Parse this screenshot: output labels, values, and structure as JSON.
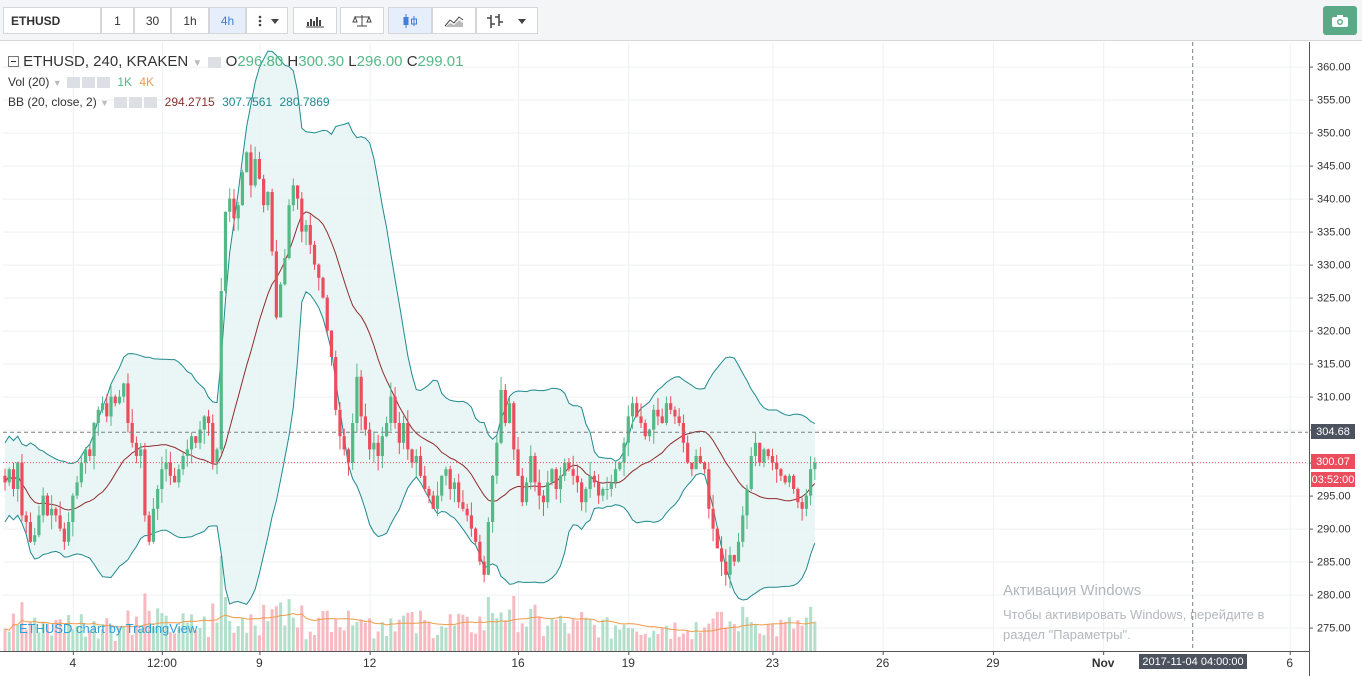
{
  "toolbar": {
    "symbol": "ETHUSD",
    "intervals": [
      "1",
      "30",
      "1h",
      "4h"
    ],
    "active_interval": "4h",
    "colors": {
      "accent": "#3f7fd9",
      "screenshot": "#5aaa87"
    }
  },
  "legend": {
    "title": "ETHUSD, 240, KRAKEN",
    "o_label": "O",
    "o_value": "296.80",
    "h_label": "H",
    "h_value": "300.30",
    "l_label": "L",
    "l_value": "296.00",
    "c_label": "C",
    "c_value": "299.01",
    "vol_label": "Vol (20)",
    "vol_1": "1K",
    "vol_2": "4K",
    "bb_label": "BB (20, close, 2)",
    "bb_basis": "294.2715",
    "bb_upper": "307.7561",
    "bb_lower": "280.7869"
  },
  "price_tags": {
    "upper": "304.68",
    "last": "300.07",
    "countdown": "03:52:00",
    "crosshair_time": "2017-11-04 04:00:00"
  },
  "attribution": "ETHUSD chart by TradingView",
  "watermark": {
    "title": "Активация Windows",
    "line2": "Чтобы активировать Windows, перейдите в",
    "line3": "раздел \"Параметры\"."
  },
  "chart_data": {
    "type": "candlestick",
    "symbol": "ETHUSD",
    "interval": "240",
    "exchange": "KRAKEN",
    "y_axis": {
      "min": 271,
      "max": 363,
      "ticks": [
        275,
        280,
        285,
        290,
        295,
        300,
        305,
        310,
        315,
        320,
        325,
        330,
        335,
        340,
        345,
        350,
        355,
        360
      ]
    },
    "x_axis": {
      "labels": [
        "4",
        "12:00",
        "9",
        "12",
        "16",
        "19",
        "23",
        "26",
        "29",
        "Nov",
        "6"
      ],
      "label_bar_index": [
        16,
        37,
        60,
        86,
        121,
        147,
        181,
        207,
        233,
        259,
        303
      ]
    },
    "closes": [
      297,
      299,
      296,
      300,
      292,
      291,
      288,
      289,
      292,
      295,
      292,
      293,
      292,
      290,
      288,
      291,
      295,
      297,
      300,
      302,
      301,
      306,
      308,
      309,
      307,
      310,
      309,
      310,
      312,
      306,
      303,
      301,
      302,
      292,
      288,
      293,
      296,
      299,
      300,
      298,
      297,
      299,
      301,
      302,
      304,
      303,
      305,
      307,
      306,
      300,
      302,
      326,
      338,
      340,
      337,
      339,
      344,
      347,
      342,
      346,
      343,
      339,
      341,
      332,
      322,
      327,
      331,
      339,
      342,
      340,
      335,
      336,
      333,
      330,
      328,
      325,
      320,
      316,
      308,
      304,
      302,
      300,
      306,
      313,
      307,
      305,
      302,
      303,
      301,
      304,
      306,
      310,
      306,
      303,
      306,
      302,
      300,
      301,
      298,
      296,
      295,
      293,
      295,
      298,
      299,
      296,
      297,
      294,
      293,
      292,
      290,
      288,
      285,
      283,
      291,
      298,
      303,
      311,
      306,
      309,
      302,
      298,
      294,
      297,
      301,
      297,
      295,
      294,
      297,
      299,
      296,
      298,
      300,
      299,
      298,
      297,
      294,
      296,
      298,
      297,
      295,
      296,
      296,
      297,
      299,
      300,
      303,
      307,
      309,
      307,
      306,
      304,
      305,
      308,
      307,
      306,
      309,
      308,
      307,
      306,
      303,
      300,
      299,
      301,
      300,
      299,
      293,
      290,
      287,
      285,
      283,
      286,
      285,
      288,
      292,
      296,
      301,
      303,
      300,
      302,
      301,
      300,
      299,
      298,
      297,
      298,
      296,
      294,
      293,
      295,
      299,
      300
    ],
    "volume_axis_labels": [
      "1K",
      "4K"
    ],
    "bollinger": {
      "period": 20,
      "source": "close",
      "stdev": 2,
      "basis": 294.2715,
      "upper": 307.7561,
      "lower": 280.7869
    },
    "crosshair_price": 304.68,
    "last_price": 300.07,
    "crosshair_time": "2017-11-04 04:00:00",
    "colors": {
      "up": "#53b987",
      "down": "#eb4d5c",
      "bb_band": "#1f8a8f",
      "bb_basis": "#8e2d2d",
      "bb_fill": "#e6f3f3",
      "vol_ma": "#f19b4a"
    }
  }
}
